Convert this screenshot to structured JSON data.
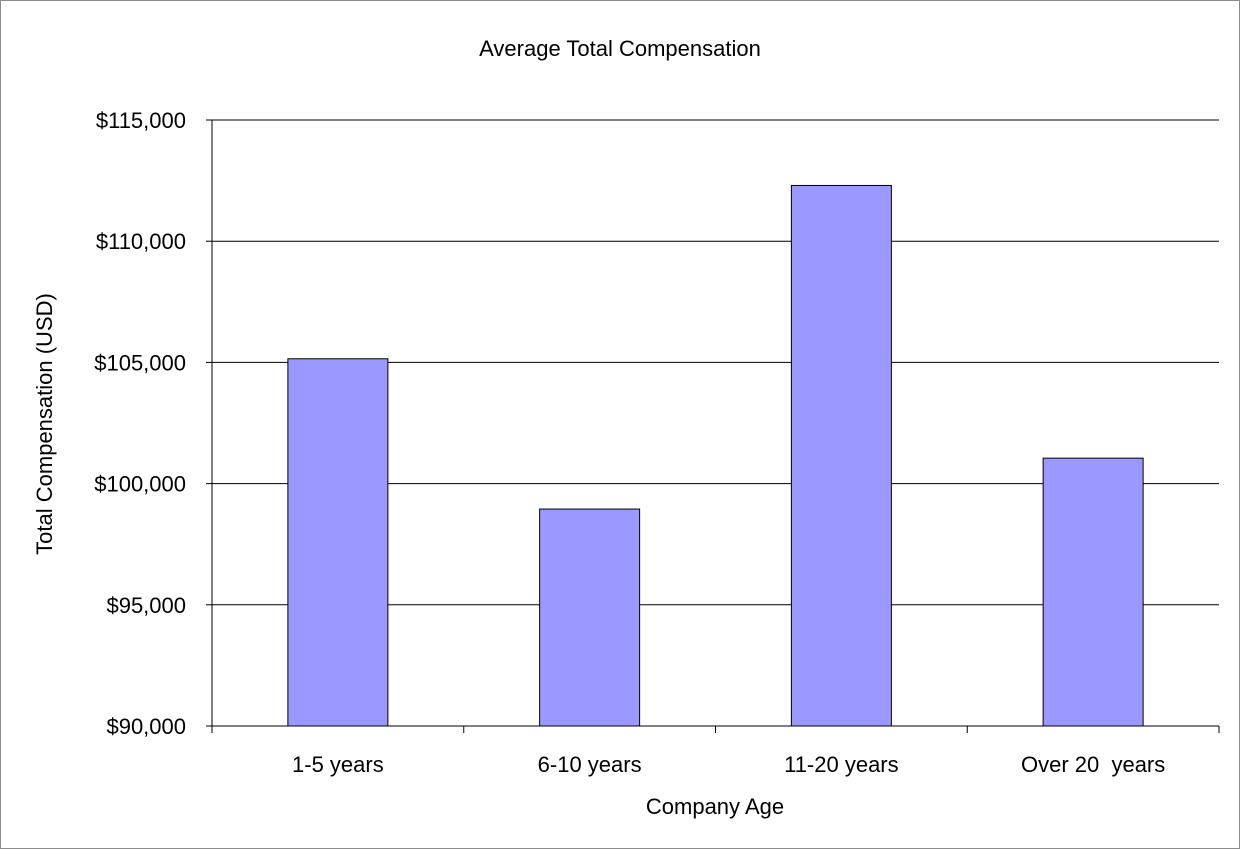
{
  "chart_data": {
    "type": "bar",
    "title": "Average Total Compensation",
    "xlabel": "Company Age",
    "ylabel": "Total Compensation (USD)",
    "categories": [
      "1-5 years",
      "6-10 years",
      "11-20 years",
      "Over 20  years"
    ],
    "values": [
      105150,
      98950,
      112300,
      101050
    ],
    "ylim": [
      90000,
      115000
    ],
    "yticks": [
      90000,
      95000,
      100000,
      105000,
      110000,
      115000
    ],
    "ytick_labels": [
      "$90,000",
      "$95,000",
      "$100,000",
      "$105,000",
      "$110,000",
      "$115,000"
    ],
    "grid": true,
    "legend": "none",
    "colors": {
      "bar_fill": "#9999ff",
      "bar_stroke": "#000000",
      "grid": "#000000",
      "background": "#ffffff"
    }
  }
}
